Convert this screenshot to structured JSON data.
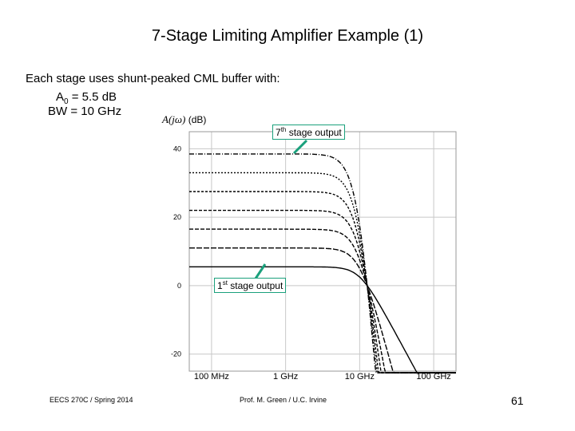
{
  "slide": {
    "title": "7-Stage Limiting Amplifier Example (1)",
    "intro": "Each stage uses shunt-peaked CML buffer with:",
    "params": {
      "a0_symbol": "A",
      "a0_sub": "0",
      "a0_rest": " = 5.5 dB",
      "bw": "BW = 10 GHz"
    },
    "gain_label": {
      "fn": "A(jω)",
      "unit": "(dB)"
    },
    "callouts": {
      "top": {
        "num": "7",
        "sup": "th",
        "text": " stage output"
      },
      "bottom": {
        "num": "1",
        "sup": "st",
        "text": " stage output"
      }
    },
    "footer": {
      "course": "EECS 270C / Spring 2014",
      "author": "Prof. M. Green / U.C. Irvine",
      "slide_number": "61"
    },
    "colors": {
      "curve": "#000000",
      "callout": "#1aa07c",
      "grid": "#c8c8c8"
    }
  },
  "chart_data": {
    "type": "line",
    "title": "",
    "xlabel": "",
    "ylabel": "A(jω) (dB)",
    "x_scale": "log",
    "xlim_hz": [
      50000000,
      200000000000
    ],
    "ylim": [
      -25,
      45
    ],
    "grid": true,
    "x_ticks": [
      {
        "value": 100000000,
        "label": "100 MHz"
      },
      {
        "value": 1000000000,
        "label": "1 GHz"
      },
      {
        "value": 10000000000,
        "label": "10 GHz"
      },
      {
        "value": 100000000000,
        "label": "100 GHz"
      }
    ],
    "y_ticks": [
      {
        "value": 40,
        "label": "40"
      },
      {
        "value": 20,
        "label": "20"
      },
      {
        "value": 0,
        "label": "0"
      },
      {
        "value": -20,
        "label": "-20"
      }
    ],
    "series": [
      {
        "stages": 1,
        "dc_gain_db": 5.5
      },
      {
        "stages": 2,
        "dc_gain_db": 11
      },
      {
        "stages": 3,
        "dc_gain_db": 16.5
      },
      {
        "stages": 4,
        "dc_gain_db": 22
      },
      {
        "stages": 5,
        "dc_gain_db": 27.5
      },
      {
        "stages": 6,
        "dc_gain_db": 33
      },
      {
        "stages": 7,
        "dc_gain_db": 38.5
      }
    ],
    "stage_bandwidth_hz": 10000000000
  }
}
